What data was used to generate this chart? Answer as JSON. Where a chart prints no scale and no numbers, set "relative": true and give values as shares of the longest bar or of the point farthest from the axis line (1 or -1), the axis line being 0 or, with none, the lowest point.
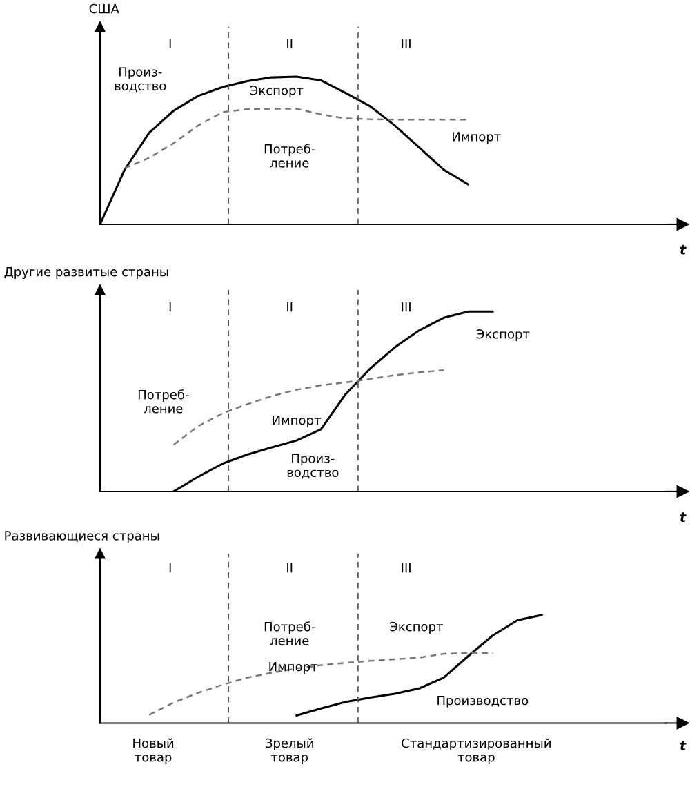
{
  "chart_data": [
    {
      "type": "line",
      "title": "США",
      "xlabel": "t",
      "relative": true,
      "marker": "none",
      "categories": [
        null,
        null,
        null,
        null,
        null,
        null,
        null,
        null,
        null,
        null,
        null,
        null,
        null,
        null,
        null,
        null,
        null,
        null,
        null,
        null,
        null,
        null,
        null
      ],
      "series": [
        {
          "color": "#000000",
          "line_style": "solid",
          "values": [
            0,
            0.37,
            0.62,
            0.77,
            0.87,
            0.93,
            0.97,
            0.995,
            1.0,
            0.975,
            0.89,
            0.8,
            0.67,
            0.52,
            0.37,
            0.27,
            null,
            null,
            null,
            null,
            null,
            null,
            null
          ]
        },
        {
          "color": "#777777",
          "line_style": "dashed",
          "values": [
            null,
            0.38,
            0.45,
            0.55,
            0.67,
            0.76,
            0.78,
            0.783,
            0.783,
            0.745,
            0.717,
            0.712,
            0.709,
            0.709,
            0.709,
            0.709,
            null,
            null,
            null,
            null,
            null,
            null,
            null
          ]
        }
      ],
      "annotations": [
        "I",
        "II",
        "III",
        "Произ-\nводство",
        "Экспорт",
        "Потреб-\nление",
        "Импорт"
      ]
    },
    {
      "type": "line",
      "title": "Другие развитые страны",
      "xlabel": "t",
      "relative": true,
      "marker": "none",
      "categories": [
        null,
        null,
        null,
        null,
        null,
        null,
        null,
        null,
        null,
        null,
        null,
        null,
        null,
        null,
        null,
        null,
        null,
        null,
        null,
        null,
        null,
        null,
        null
      ],
      "series": [
        {
          "color": "#000000",
          "line_style": "solid",
          "values": [
            null,
            null,
            null,
            0.0,
            0.082,
            0.155,
            0.205,
            0.245,
            0.283,
            0.345,
            0.54,
            0.682,
            0.8,
            0.895,
            0.965,
            1.0,
            1.0,
            null,
            null,
            null,
            null,
            null,
            null
          ]
        },
        {
          "color": "#777777",
          "line_style": "dashed",
          "values": [
            null,
            null,
            null,
            0.26,
            0.363,
            0.435,
            0.485,
            0.53,
            0.565,
            0.59,
            0.606,
            0.625,
            0.646,
            0.662,
            0.674,
            null,
            null,
            null,
            null,
            null,
            null,
            null,
            null
          ]
        }
      ],
      "annotations": [
        "I",
        "II",
        "III",
        "Экспорт",
        "Потреб-\nление",
        "Импорт",
        "Произ-\nводство"
      ]
    },
    {
      "type": "line",
      "title": "Развивающиеся страны",
      "xlabel": "t",
      "relative": true,
      "marker": "none",
      "categories": [
        null,
        null,
        null,
        null,
        null,
        null,
        null,
        null,
        null,
        null,
        null,
        null,
        null,
        null,
        null,
        null,
        null,
        null,
        null,
        null,
        null,
        null,
        null
      ],
      "series": [
        {
          "color": "#000000",
          "line_style": "solid",
          "values": [
            null,
            null,
            null,
            null,
            null,
            null,
            null,
            null,
            0.07,
            0.135,
            0.195,
            0.235,
            0.27,
            0.32,
            0.42,
            0.62,
            0.81,
            0.95,
            1.0,
            null,
            null,
            null,
            null
          ]
        },
        {
          "color": "#777777",
          "line_style": "dashed",
          "values": [
            null,
            null,
            0.075,
            0.19,
            0.28,
            0.355,
            0.42,
            0.465,
            0.505,
            0.535,
            0.557,
            0.575,
            0.59,
            0.605,
            0.64,
            0.647,
            0.647,
            null,
            null,
            null,
            null,
            null,
            null
          ]
        }
      ],
      "annotations": [
        "I",
        "II",
        "III",
        "Потреб-\nление",
        "Экспорт",
        "Импорт",
        "Производство",
        "Новый\nтовар",
        "Зрелый\nтовар",
        "Стандартизированный\nтовар"
      ]
    }
  ]
}
